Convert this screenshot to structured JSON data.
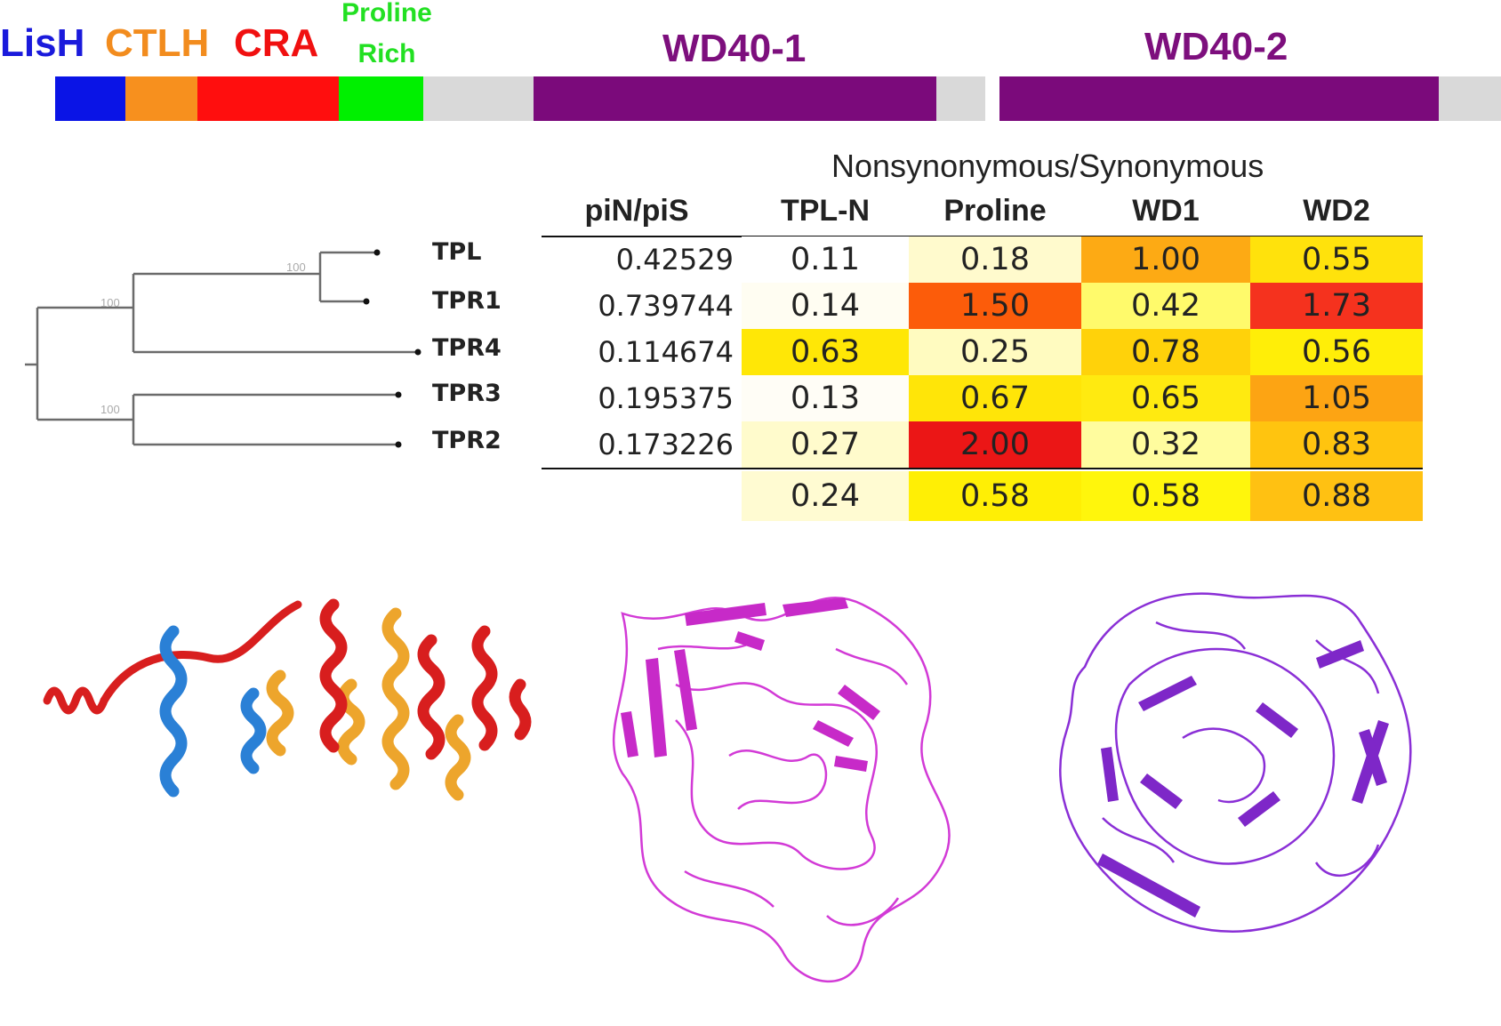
{
  "domain_labels": {
    "lish": {
      "text": "LisH",
      "color": "#1a1adc"
    },
    "ctlh": {
      "text": "CTLH",
      "color": "#f28c1e"
    },
    "cra": {
      "text": "CRA",
      "color": "#f01010"
    },
    "proline_line1": {
      "text": "Proline",
      "color": "#22e022"
    },
    "proline_line2": {
      "text": "Rich",
      "color": "#22e022"
    },
    "wd40_1": {
      "text": "WD40-1",
      "color": "#7d0f7d"
    },
    "wd40_2": {
      "text": "WD40-2",
      "color": "#7d0f7d"
    }
  },
  "domain_bar_colors": {
    "lish": "#0a14e6",
    "ctlh": "#f7901e",
    "cra": "#ff0e0e",
    "proline": "#00f000",
    "linker": "#d9d9d9",
    "wd40": "#7b0a7b"
  },
  "tree": {
    "taxa": [
      "TPL",
      "TPR1",
      "TPR4",
      "TPR3",
      "TPR2"
    ],
    "bootstrap": [
      "100",
      "100",
      "100"
    ]
  },
  "table": {
    "group_header": "Nonsynonymous/Synonymous",
    "columns": [
      "piN/piS",
      "TPL-N",
      "Proline",
      "WD1",
      "WD2"
    ],
    "rows": [
      {
        "pinpis": "0.42529",
        "values": [
          "0.11",
          "0.18",
          "1.00",
          "0.55"
        ],
        "colors": [
          "#ffffff",
          "#fffacd",
          "#fdaa14",
          "#ffe20c"
        ]
      },
      {
        "pinpis": "0.739744",
        "values": [
          "0.14",
          "1.50",
          "0.42",
          "1.73"
        ],
        "colors": [
          "#fffdf2",
          "#fc5c0a",
          "#fffa6b",
          "#f5321e"
        ]
      },
      {
        "pinpis": "0.114674",
        "values": [
          "0.63",
          "0.25",
          "0.78",
          "0.56"
        ],
        "colors": [
          "#ffe706",
          "#fffbc0",
          "#ffd20a",
          "#ffee08"
        ]
      },
      {
        "pinpis": "0.195375",
        "values": [
          "0.13",
          "0.67",
          "0.65",
          "1.05"
        ],
        "colors": [
          "#fffdf6",
          "#ffe508",
          "#ffea10",
          "#fda413"
        ]
      },
      {
        "pinpis": "0.173226",
        "values": [
          "0.27",
          "2.00",
          "0.32",
          "0.83"
        ],
        "colors": [
          "#fffbcc",
          "#eb1616",
          "#fffc9e",
          "#ffc40f"
        ]
      }
    ],
    "averages": {
      "values": [
        "0.24",
        "0.58",
        "0.58",
        "0.88"
      ],
      "colors": [
        "#fffbd2",
        "#ffef05",
        "#fff60c",
        "#ffc112"
      ]
    }
  },
  "structure_colors": {
    "tpln_red": "#d81e1e",
    "tpln_blue": "#2a80d6",
    "tpln_orange": "#eda52c",
    "wd1": "#d23ad6",
    "wd2": "#8a2fd6"
  }
}
